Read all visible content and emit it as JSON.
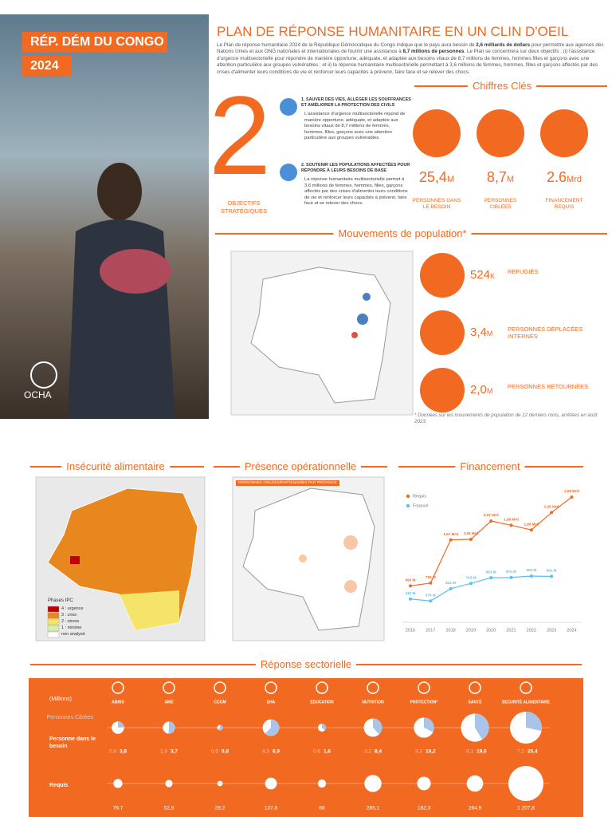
{
  "header": {
    "country": "RÉP. DÉM DU CONGO",
    "year": "2024",
    "title": "PLAN DE RÉPONSE HUMANITAIRE EN UN CLIN D'OEIL",
    "intro": [
      "Le Plan de réponse humanitaire 2024 de la République Démocratique du Congo indique que le pays aura besoin de ",
      "2,6 milliards de dollars",
      " pour permettre aux agences des Nations Unies et aux ONG nationales et internationales de fournir une assistance à ",
      "8,7 millions de personnes",
      ". Le Plan se concentrera sur deux objectifs : (i) l'assistance d'urgence multisectorielle pour répondre de manière opportune, adéquate, et adaptée aux besoins vitaux de 8,7 millions de femmes, hommes filles et garçons avec une attention particulière aux groupes vulnérables ; et ii) la réponse humanitaire multisectorielle permettant à 3,6 millions de femmes, hommes, filles et garçons affectés par des crises d'alimenter leurs conditions de vie et renforcer leurs capacités à prévenir, faire face et se relever des chocs."
    ],
    "logo": "OCHA"
  },
  "objectives": {
    "number": "2",
    "label": "OBJECTIFS STRATÉGIQUES",
    "items": [
      {
        "title": "1. SAUVER DES VIES, ALLÉGER LES SOUFFRANCES ET AMÉLIORER LA PROTECTION DES CIVILS",
        "text": "L'assistance d'urgence multisectorielle répond de manière opportune, adéquate, et adaptée aux besoins vitaux de 8,7 millions de femmes, hommes, filles, garçons avec une attention particulière aux groupes vulnérables."
      },
      {
        "title": "2. SOUTENIR LES POPULATIONS AFFECTÉES POUR RÉPONDRE À LEURS BESOINS DE BASE",
        "text": "La réponse humanitaire multisectorielle permet à 3,6 millions de femmes, hommes, filles, garçons affectés par des crises d'alimenter leurs conditions de vie et renforcer leurs capacités à prévenir, faire face et se relever des chocs."
      }
    ]
  },
  "key_figures": {
    "heading": "Chiffres Clés",
    "items": [
      {
        "value": "25,4",
        "unit": "M",
        "label": "PERSONNES DANS LE BESOIN"
      },
      {
        "value": "8,7",
        "unit": "M",
        "label": "PERSONNES CIBLÉES"
      },
      {
        "value": "2.6",
        "unit": "Mrd",
        "label": "FINANCEMENT REQUIS"
      }
    ]
  },
  "movements": {
    "heading": "Mouvements de population*",
    "items": [
      {
        "value": "524",
        "unit": "K",
        "label": "REFUGIÉS"
      },
      {
        "value": "3,4",
        "unit": "M",
        "label": "PERSONNES DÉPLACÉES INTERNES"
      },
      {
        "value": "2,0",
        "unit": "M",
        "label": "PERSONNES RETOURNÉES"
      }
    ],
    "note": "* Données sur les mouvements de population de 12 derniers mois, arrêtées en août 2023."
  },
  "food_insecurity": {
    "heading": "Insécurité alimentaire",
    "legend_title": "Phases IPC",
    "legend": [
      {
        "label": "4 : urgence",
        "color": "#c00000"
      },
      {
        "label": "3 : crise",
        "color": "#e8871e"
      },
      {
        "label": "2 : stress",
        "color": "#f5e36a"
      },
      {
        "label": "1 : minime",
        "color": "#d6f0b2"
      },
      {
        "label": "non analysé",
        "color": "#ffffff"
      }
    ]
  },
  "presence": {
    "heading": "Présence opérationnelle",
    "caption": "PERSONNES CIBLÉES/PARTENAIRES PAR PROVINCE"
  },
  "financement": {
    "heading": "Financement",
    "type": "line",
    "x": [
      "2016",
      "2017",
      "2018",
      "2019",
      "2020",
      "2021",
      "2022",
      "2023",
      "2024"
    ],
    "series": [
      {
        "name": "Requis",
        "color": "#f26a21",
        "values": [
          690,
          750,
          1670,
          1680,
          2070,
          1980,
          1880,
          2250,
          2580
        ],
        "value_labels": [
          "690 M",
          "750 M",
          "1,67 Mrd",
          "1,68 Mrd",
          "2,07 Mrd",
          "1,98 Mrd",
          "1,88 Mrd",
          "2,25 Mrd",
          "2,58 Mrd"
        ]
      },
      {
        "name": "Financé",
        "color": "#5bc0e8",
        "values": [
          412,
          370,
          631,
          743,
          863,
          870,
          900,
          891,
          null
        ],
        "value_labels": [
          "412 M",
          "370 M",
          "631 M",
          "743 M",
          "863 M",
          "870 M",
          "900 M",
          "891 M",
          null
        ]
      }
    ]
  },
  "sectors": {
    "heading": "Réponse sectorielle",
    "unit_label": "(Millions)",
    "row_targeted": "Personnes Ciblées",
    "row_need": "Personne dans le besoin",
    "row_required": "Requis",
    "names": [
      "ABRIS",
      "AME",
      "CCCM",
      "EHA",
      "EDUCATION",
      "NUTRITION",
      "PROTECTION*",
      "SANTÉ",
      "SECURITÉ ALIMENTAIRE"
    ],
    "targeted": [
      0.9,
      1.9,
      0.5,
      4.3,
      0.6,
      3.2,
      3.3,
      8.1,
      7.2
    ],
    "targeted_labels": [
      "0,9",
      "1,9",
      "0,5",
      "4,3",
      "0,6",
      "3,2",
      "3,3",
      "8,1",
      "7,2"
    ],
    "need": [
      3.8,
      3.7,
      0.8,
      6.9,
      1.6,
      8.4,
      10.2,
      19.6,
      25.4
    ],
    "need_labels": [
      "3,8",
      "3,7",
      "0,8",
      "6,9",
      "1,6",
      "8,4",
      "10,2",
      "19,6",
      "25,4"
    ],
    "required": [
      79.7,
      52.9,
      29.2,
      137.8,
      66,
      285.1,
      182.3,
      264.9,
      1207.8
    ],
    "required_labels": [
      "79,7",
      "52,9",
      "29,2",
      "137,8",
      "66",
      "285,1",
      "182,3",
      "264,9",
      "1 207,8"
    ]
  }
}
